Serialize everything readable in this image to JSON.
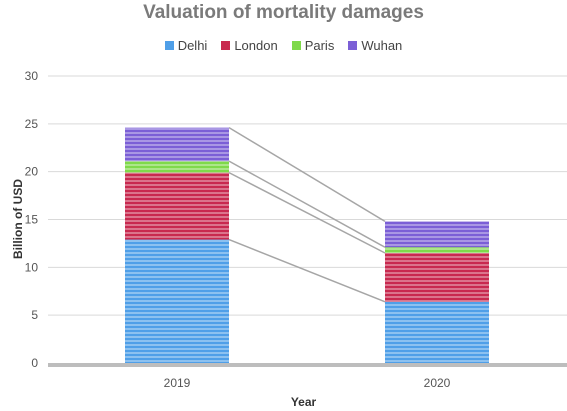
{
  "chart_data": {
    "type": "bar",
    "stacked": true,
    "title": "Valuation of mortality damages",
    "xlabel": "Year",
    "ylabel": "Billion of USD",
    "categories": [
      "2019",
      "2020"
    ],
    "ylim": [
      0,
      30
    ],
    "yticks": [
      "0",
      "5",
      "10",
      "15",
      "20",
      "25",
      "30"
    ],
    "grid": true,
    "legend_position": "top",
    "connector_lines": true,
    "series": [
      {
        "name": "Delhi",
        "values": [
          12.9,
          6.4
        ],
        "color": "#4f9fe8"
      },
      {
        "name": "London",
        "values": [
          7.0,
          5.1
        ],
        "color": "#c8294f"
      },
      {
        "name": "Paris",
        "values": [
          1.2,
          0.6
        ],
        "color": "#7fd94a"
      },
      {
        "name": "Wuhan",
        "values": [
          3.5,
          2.7
        ],
        "color": "#7b5fd6"
      }
    ]
  }
}
